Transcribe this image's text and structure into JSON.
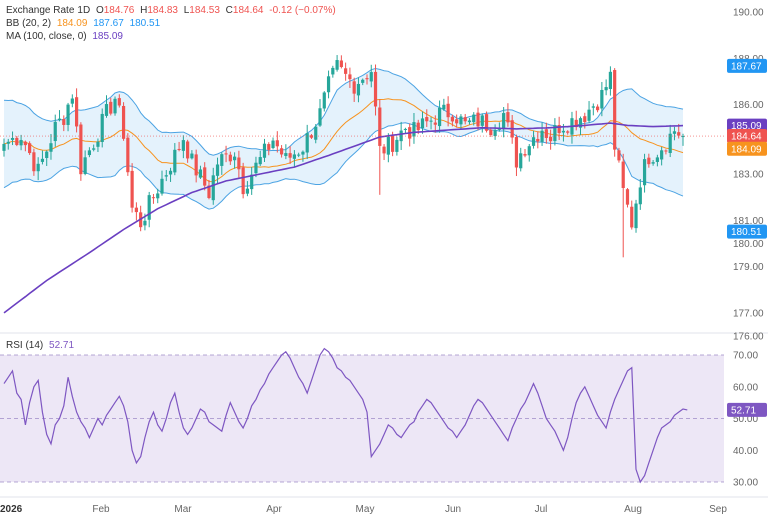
{
  "header": {
    "title": "Exchange Rate",
    "interval": "1D",
    "o_label": "O",
    "o_value": "184.76",
    "h_label": "H",
    "h_value": "184.83",
    "l_label": "L",
    "l_value": "184.53",
    "c_label": "C",
    "c_value": "184.64",
    "change": "-0.12 (−0.07%)"
  },
  "bb_legend": {
    "label": "BB (20, 2)",
    "basis": "184.09",
    "upper": "187.67",
    "lower": "180.51"
  },
  "ma_legend": {
    "label": "MA (100, close, 0)",
    "value": "185.09"
  },
  "rsi_legend": {
    "label": "RSI (14)",
    "value": "52.71"
  },
  "colors": {
    "up": "#26a69a",
    "down": "#ef5350",
    "bb_line": "#4ba3e3",
    "bb_fill": "#d9ecfb",
    "bb_basis": "#f7931e",
    "ma": "#6a3fc1",
    "rsi_line": "#7e57c2",
    "rsi_fill": "#ede7f6",
    "price_tag": "#ef5350",
    "upper_tag": "#2196f3"
  },
  "chart_data": [
    {
      "type": "candlestick",
      "ylim": [
        176,
        190
      ],
      "y_ticks": [
        "190.00",
        "188.00",
        "186.00",
        "185.00",
        "183.00",
        "181.00",
        "180.00",
        "179.00",
        "177.00",
        "176.00"
      ],
      "x_ticks": [
        "2026",
        "Feb",
        "Mar",
        "Apr",
        "May",
        "Jun",
        "Jul",
        "Aug",
        "Sep"
      ],
      "price_tags": {
        "ma": "185.09",
        "close": "184.64",
        "basis": "184.09",
        "upper": "187.67",
        "lower": "180.51"
      },
      "anchors": [
        [
          0,
          184.3
        ],
        [
          4,
          184.7
        ],
        [
          8,
          183.1
        ],
        [
          12,
          185.0
        ],
        [
          14,
          185.5
        ],
        [
          16,
          186.5
        ],
        [
          18,
          183.3
        ],
        [
          21,
          184.4
        ],
        [
          24,
          185.6
        ],
        [
          26,
          186.3
        ],
        [
          28,
          184.8
        ],
        [
          30,
          181.5
        ],
        [
          32,
          180.9
        ],
        [
          36,
          182.4
        ],
        [
          40,
          183.8
        ],
        [
          42,
          184.6
        ],
        [
          44,
          183.5
        ],
        [
          48,
          182.2
        ],
        [
          50,
          183.5
        ],
        [
          54,
          184.0
        ],
        [
          56,
          182.5
        ],
        [
          60,
          183.6
        ],
        [
          63,
          184.5
        ],
        [
          66,
          183.6
        ],
        [
          70,
          184.2
        ],
        [
          74,
          185.6
        ],
        [
          76,
          186.8
        ],
        [
          78,
          187.6
        ],
        [
          80,
          187.2
        ],
        [
          82,
          186.9
        ],
        [
          84,
          187.2
        ],
        [
          86,
          187.5
        ],
        [
          88,
          184.0
        ],
        [
          90,
          184.2
        ],
        [
          92,
          184.6
        ],
        [
          94,
          185.0
        ],
        [
          96,
          184.8
        ],
        [
          99,
          185.2
        ],
        [
          102,
          185.6
        ],
        [
          105,
          185.7
        ],
        [
          108,
          185.1
        ],
        [
          111,
          185.3
        ],
        [
          114,
          185.1
        ],
        [
          117,
          185.6
        ],
        [
          120,
          183.6
        ],
        [
          122,
          184.2
        ],
        [
          124,
          184.6
        ],
        [
          126,
          185.0
        ],
        [
          128,
          184.6
        ],
        [
          130,
          185.1
        ],
        [
          133,
          185.3
        ],
        [
          136,
          185.6
        ],
        [
          138,
          186.0
        ],
        [
          140,
          186.4
        ],
        [
          142,
          187.2
        ],
        [
          143,
          184.2
        ],
        [
          145,
          182.2
        ],
        [
          147,
          180.9
        ],
        [
          149,
          182.8
        ],
        [
          151,
          183.8
        ],
        [
          153,
          184.0
        ],
        [
          155,
          184.4
        ],
        [
          157,
          184.9
        ],
        [
          159,
          184.64
        ]
      ],
      "ma_anchors": [
        [
          0,
          177.0
        ],
        [
          10,
          178.4
        ],
        [
          20,
          179.6
        ],
        [
          28,
          180.6
        ],
        [
          36,
          181.5
        ],
        [
          44,
          182.2
        ],
        [
          52,
          182.7
        ],
        [
          60,
          183.0
        ],
        [
          68,
          183.3
        ],
        [
          76,
          183.8
        ],
        [
          82,
          184.2
        ],
        [
          88,
          184.6
        ],
        [
          96,
          184.8
        ],
        [
          104,
          184.9
        ],
        [
          112,
          185.0
        ],
        [
          120,
          184.95
        ],
        [
          128,
          185.0
        ],
        [
          136,
          185.1
        ],
        [
          142,
          185.2
        ],
        [
          146,
          185.1
        ],
        [
          152,
          185.05
        ],
        [
          159,
          185.09
        ]
      ],
      "bb_width": [
        [
          0,
          3.6
        ],
        [
          14,
          2.0
        ],
        [
          26,
          3.4
        ],
        [
          32,
          2.4
        ],
        [
          44,
          2.6
        ],
        [
          56,
          1.6
        ],
        [
          66,
          1.2
        ],
        [
          72,
          2.2
        ],
        [
          78,
          3.4
        ],
        [
          86,
          2.7
        ],
        [
          94,
          1.8
        ],
        [
          104,
          0.8
        ],
        [
          112,
          0.6
        ],
        [
          120,
          1.0
        ],
        [
          130,
          0.7
        ],
        [
          138,
          1.0
        ],
        [
          143,
          2.0
        ],
        [
          147,
          3.6
        ],
        [
          152,
          3.3
        ],
        [
          159,
          3.58
        ]
      ]
    },
    {
      "type": "line",
      "series": [
        {
          "name": "RSI (14)",
          "values": [
            61,
            63,
            65,
            58,
            56,
            48,
            55,
            60,
            62,
            52,
            45,
            42,
            48,
            50,
            54,
            63,
            57,
            52,
            49,
            47,
            44,
            47,
            50,
            48,
            51,
            53,
            55,
            57,
            54,
            49,
            40,
            36,
            38,
            44,
            49,
            52,
            48,
            46,
            50,
            55,
            58,
            52,
            47,
            45,
            47,
            50,
            53,
            52,
            49,
            48,
            47,
            46,
            51,
            55,
            52,
            49,
            47,
            50,
            54,
            56,
            59,
            61,
            64,
            66,
            68,
            70,
            71,
            69,
            66,
            63,
            61,
            58,
            62,
            66,
            70,
            72,
            71,
            69,
            66,
            65,
            63,
            62,
            60,
            58,
            56,
            52,
            38,
            40,
            42,
            45,
            48,
            47,
            45,
            44,
            46,
            48,
            49,
            52,
            54,
            56,
            55,
            53,
            51,
            49,
            47,
            46,
            44,
            46,
            48,
            51,
            54,
            56,
            55,
            53,
            51,
            49,
            47,
            45,
            43,
            47,
            50,
            53,
            55,
            58,
            61,
            58,
            54,
            50,
            48,
            46,
            43,
            40,
            44,
            50,
            55,
            58,
            60,
            57,
            54,
            51,
            49,
            47,
            52,
            56,
            59,
            62,
            65,
            66,
            34,
            30,
            32,
            36,
            40,
            44,
            47,
            48,
            49,
            51,
            52,
            53,
            52.71
          ]
        }
      ],
      "ylim": [
        30,
        70
      ],
      "y_ticks": [
        "70.00",
        "60.00",
        "50.00",
        "40.00",
        "30.00"
      ],
      "last_value": "52.71"
    }
  ]
}
